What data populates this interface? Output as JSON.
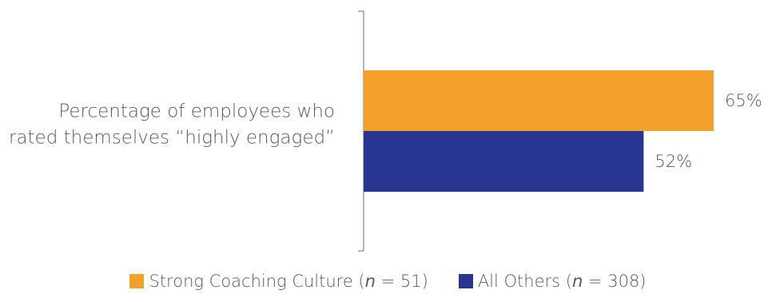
{
  "chart_data": {
    "type": "bar",
    "orientation": "horizontal",
    "categories": [
      "Percentage of employees who rated themselves “highly engaged”"
    ],
    "category_lines": [
      "Percentage of employees who",
      "rated themselves “highly engaged”"
    ],
    "series": [
      {
        "name": "Strong Coaching Culture (n = 51)",
        "values": [
          65
        ],
        "data_labels": [
          "65%"
        ],
        "color": "#F4A12B"
      },
      {
        "name": "All Others (n = 308)",
        "values": [
          52
        ],
        "data_labels": [
          "52%"
        ],
        "color": "#283593"
      }
    ],
    "xlim": [
      0,
      65
    ],
    "grid": false,
    "legend_position": "bottom-center",
    "title": "",
    "xlabel": "",
    "ylabel": ""
  },
  "legend": {
    "items": [
      {
        "name_text": "Strong Coaching Culture (",
        "italic": "n",
        "suffix": " = 51)",
        "color": "#F4A12B"
      },
      {
        "name_text": "All Others (",
        "italic": "n",
        "suffix": " = 308)",
        "color": "#283593"
      }
    ]
  }
}
